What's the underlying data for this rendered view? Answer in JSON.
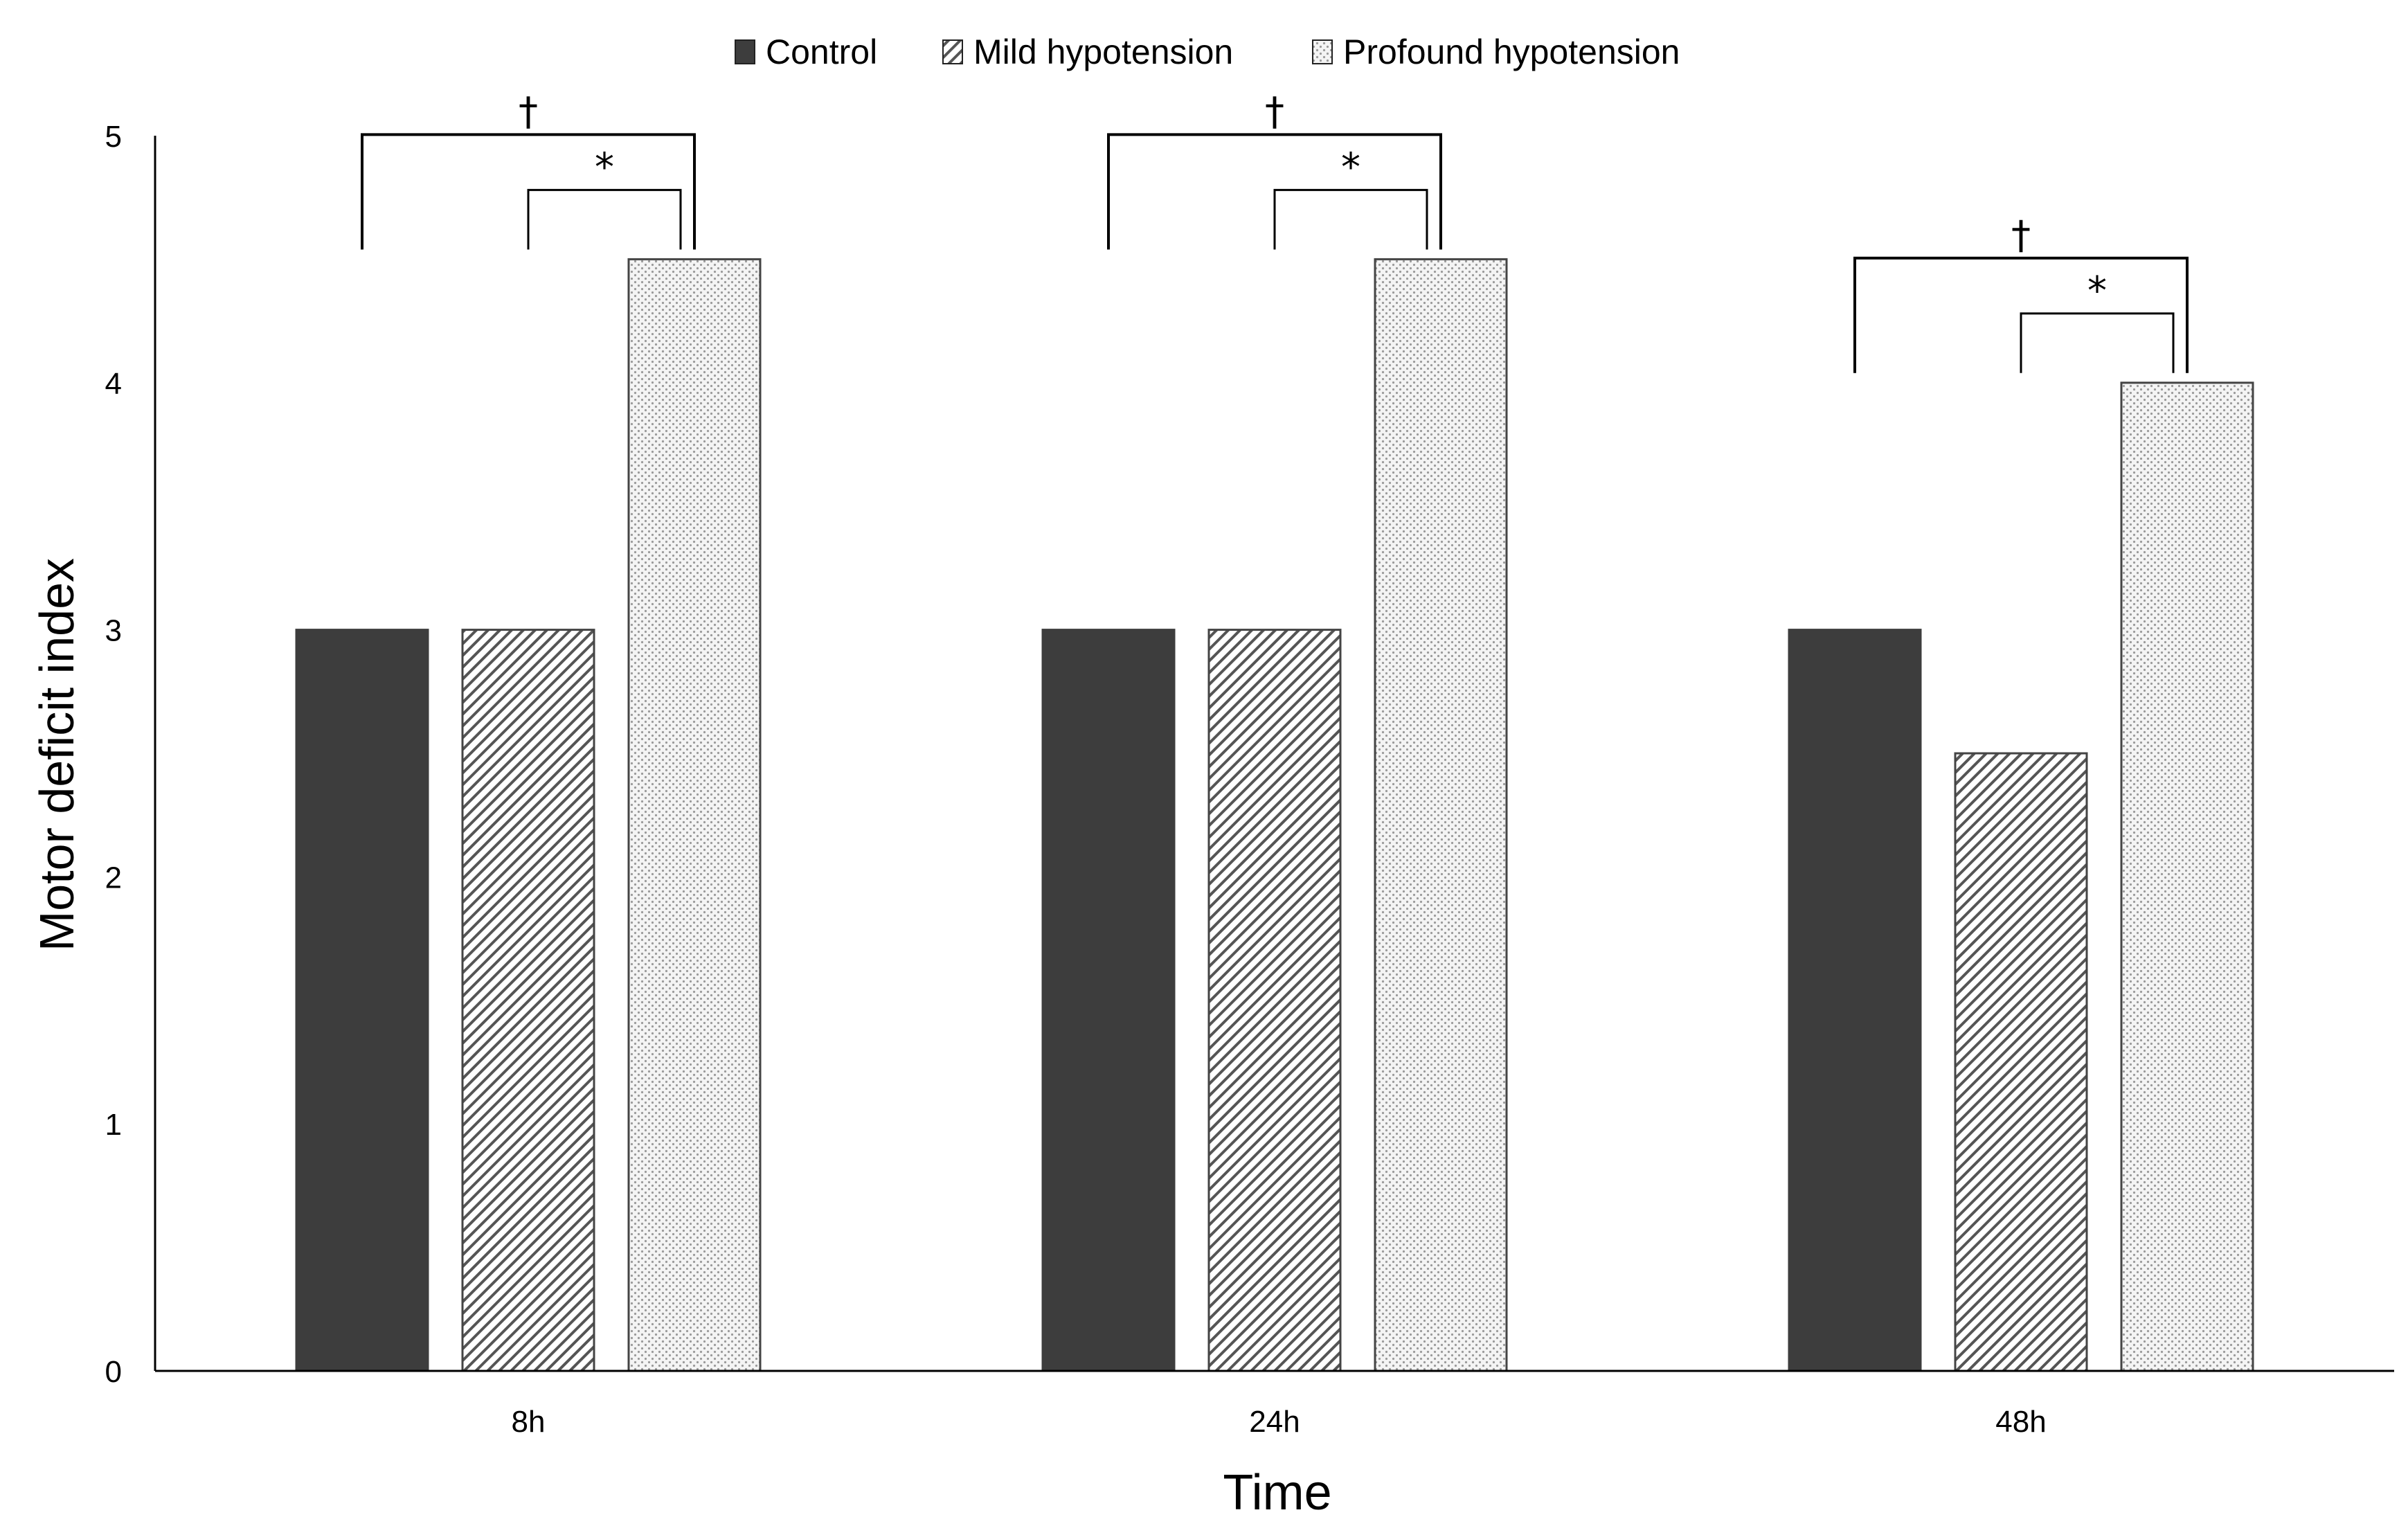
{
  "chart_data": {
    "type": "bar",
    "title": "",
    "xlabel": "Time",
    "ylabel": "Motor deficit index",
    "categories": [
      "8h",
      "24h",
      "48h"
    ],
    "ylim": [
      0,
      5
    ],
    "yticks": [
      "0",
      "1",
      "2",
      "3",
      "4",
      "5"
    ],
    "grid": false,
    "legend_position": "top-center",
    "series": [
      {
        "name": "Control",
        "values": [
          3,
          3,
          3
        ],
        "color": "#3d3d3d",
        "pattern": "solid"
      },
      {
        "name": "Mild hypotension",
        "values": [
          3,
          3,
          2.5
        ],
        "color": "#555555",
        "pattern": "diagonal-hatch"
      },
      {
        "name": "Profound hypotension",
        "values": [
          4.5,
          4.5,
          4
        ],
        "color": "#aaaaaa",
        "pattern": "dotted"
      }
    ],
    "significance": [
      {
        "category": "8h",
        "compare": [
          "Control",
          "Profound hypotension"
        ],
        "symbol": "†"
      },
      {
        "category": "8h",
        "compare": [
          "Mild hypotension",
          "Profound hypotension"
        ],
        "symbol": "*"
      },
      {
        "category": "24h",
        "compare": [
          "Control",
          "Profound hypotension"
        ],
        "symbol": "†"
      },
      {
        "category": "24h",
        "compare": [
          "Mild hypotension",
          "Profound hypotension"
        ],
        "symbol": "*"
      },
      {
        "category": "48h",
        "compare": [
          "Control",
          "Profound hypotension"
        ],
        "symbol": "†"
      },
      {
        "category": "48h",
        "compare": [
          "Mild hypotension",
          "Profound hypotension"
        ],
        "symbol": "*"
      }
    ]
  }
}
